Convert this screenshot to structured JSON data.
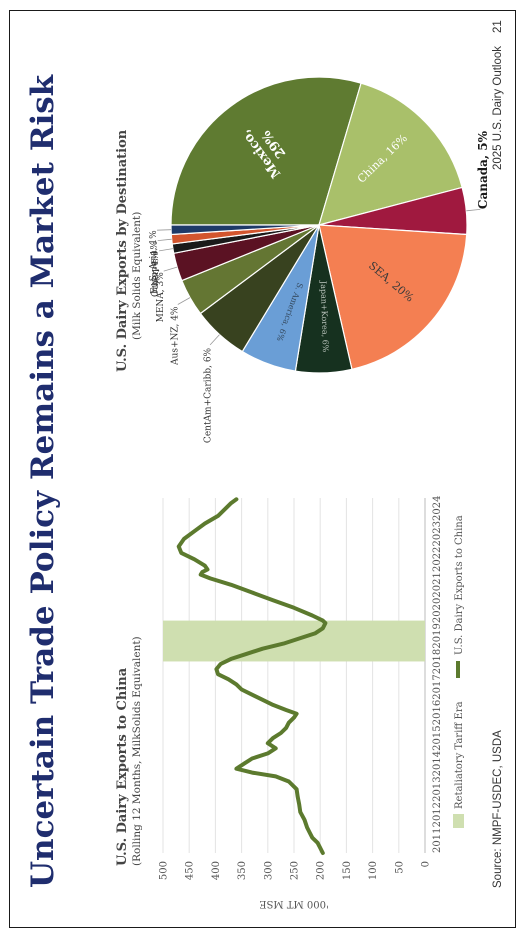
{
  "slide": {
    "title": "Uncertain Trade Policy Remains a Market Risk",
    "source": "Source: NMPF-USDEC, USDA",
    "footer_right": "2025 U.S. Dairy Outlook",
    "page_number": "21"
  },
  "line_chart": {
    "title": "U.S. Dairy Exports to China",
    "subtitle": "(Rolling 12 Months, MilkSolids Equivalent)"
  },
  "pie_chart": {
    "title": "U.S. Dairy Exports by Destination",
    "subtitle": "(Milk Solids Equivalent)"
  },
  "chart_data": [
    {
      "type": "line",
      "title": "U.S. Dairy Exports to China",
      "subtitle": "(Rolling 12 Months, MilkSolids Equivalent)",
      "ylabel": "'000 MT MSE",
      "ylim": [
        0,
        500
      ],
      "yticks": [
        0,
        50,
        100,
        150,
        200,
        250,
        300,
        350,
        400,
        450,
        500
      ],
      "xlim": [
        2011,
        2024.9
      ],
      "xticks": [
        "2011",
        "2012",
        "2013",
        "2014",
        "2015",
        "2016",
        "2017",
        "2018",
        "2019",
        "2020",
        "2021",
        "2022",
        "2023",
        "2024"
      ],
      "grid": true,
      "legend_position": "bottom",
      "shaded_region": {
        "label": "Retaliatory Tariff Era",
        "x_start": 2018.5,
        "x_end": 2020.1,
        "color": "#cfdfb0"
      },
      "series": [
        {
          "name": "U.S. Dairy Exports to China",
          "color": "#5c7a2e",
          "x": [
            2011.0,
            2011.2,
            2011.4,
            2011.6,
            2011.8,
            2012.0,
            2012.3,
            2012.6,
            2012.9,
            2013.2,
            2013.5,
            2013.8,
            2014.0,
            2014.15,
            2014.3,
            2014.5,
            2014.7,
            2014.9,
            2015.1,
            2015.3,
            2015.5,
            2015.7,
            2015.9,
            2016.1,
            2016.3,
            2016.45,
            2016.6,
            2016.8,
            2017.0,
            2017.2,
            2017.4,
            2017.6,
            2017.8,
            2018.0,
            2018.2,
            2018.4,
            2018.6,
            2018.8,
            2019.0,
            2019.2,
            2019.4,
            2019.6,
            2019.8,
            2020.0,
            2020.1,
            2020.3,
            2020.6,
            2020.9,
            2021.2,
            2021.5,
            2021.75,
            2021.9,
            2022.0,
            2022.1,
            2022.25,
            2022.5,
            2022.75,
            2023.0,
            2023.3,
            2023.6,
            2023.9,
            2024.2,
            2024.5,
            2024.7,
            2024.85
          ],
          "values": [
            195,
            200,
            205,
            215,
            220,
            225,
            230,
            238,
            240,
            243,
            245,
            260,
            285,
            330,
            360,
            345,
            330,
            300,
            285,
            300,
            290,
            275,
            265,
            260,
            250,
            245,
            265,
            290,
            310,
            330,
            350,
            360,
            375,
            395,
            398,
            390,
            370,
            340,
            310,
            270,
            240,
            210,
            195,
            190,
            195,
            215,
            250,
            290,
            330,
            370,
            410,
            428,
            425,
            415,
            420,
            440,
            465,
            470,
            460,
            440,
            420,
            395,
            380,
            370,
            360
          ]
        }
      ]
    },
    {
      "type": "pie",
      "title": "U.S. Dairy Exports by Destination",
      "subtitle": "(Milk Solids Equivalent)",
      "slices": [
        {
          "label": "Mexico,",
          "label2": "29%",
          "value": 29,
          "color": "#5f7b31",
          "label_color": "#ffffff",
          "bold": true,
          "inside": true
        },
        {
          "label": "China, 16%",
          "value": 16,
          "color": "#a9c06a",
          "label_color": "#ffffff",
          "bold": false,
          "inside": true
        },
        {
          "label": "Canada, 5%",
          "value": 5,
          "color": "#a0193f",
          "label_color": "#1a1a1a",
          "bold": true,
          "inside": false
        },
        {
          "label": "SEA, 20%",
          "value": 20,
          "color": "#f47f52",
          "label_color": "#3a3a3a",
          "bold": false,
          "inside": true
        },
        {
          "label": "Japan+Korea, 6%",
          "value": 6,
          "color": "#16311f",
          "label_color": "#b9c3bb",
          "bold": false,
          "inside": true
        },
        {
          "label": "S. America, 6%",
          "value": 6,
          "color": "#6a9ed6",
          "label_color": "#34495e",
          "bold": false,
          "inside": true
        },
        {
          "label": "CentAm+Caribb, 6%",
          "value": 6,
          "color": "#38421f",
          "label_color": "#333333",
          "bold": false,
          "inside": false
        },
        {
          "label": "Aus+NZ, 4%",
          "value": 4,
          "color": "#647633",
          "label_color": "#333333",
          "bold": false,
          "inside": false
        },
        {
          "label": "MENA, 3%",
          "value": 3,
          "color": "#5b1223",
          "label_color": "#333333",
          "bold": false,
          "inside": false
        },
        {
          "label": "Other, 1%",
          "value": 1,
          "color": "#1a1a1a",
          "label_color": "#333333",
          "bold": false,
          "inside": false
        },
        {
          "label": "Europe, 1%",
          "value": 1,
          "color": "#d2552e",
          "label_color": "#333333",
          "bold": false,
          "inside": false
        },
        {
          "label": "S. Asia, 1%",
          "value": 1,
          "color": "#1e3a68",
          "label_color": "#333333",
          "bold": false,
          "inside": false
        }
      ]
    }
  ]
}
